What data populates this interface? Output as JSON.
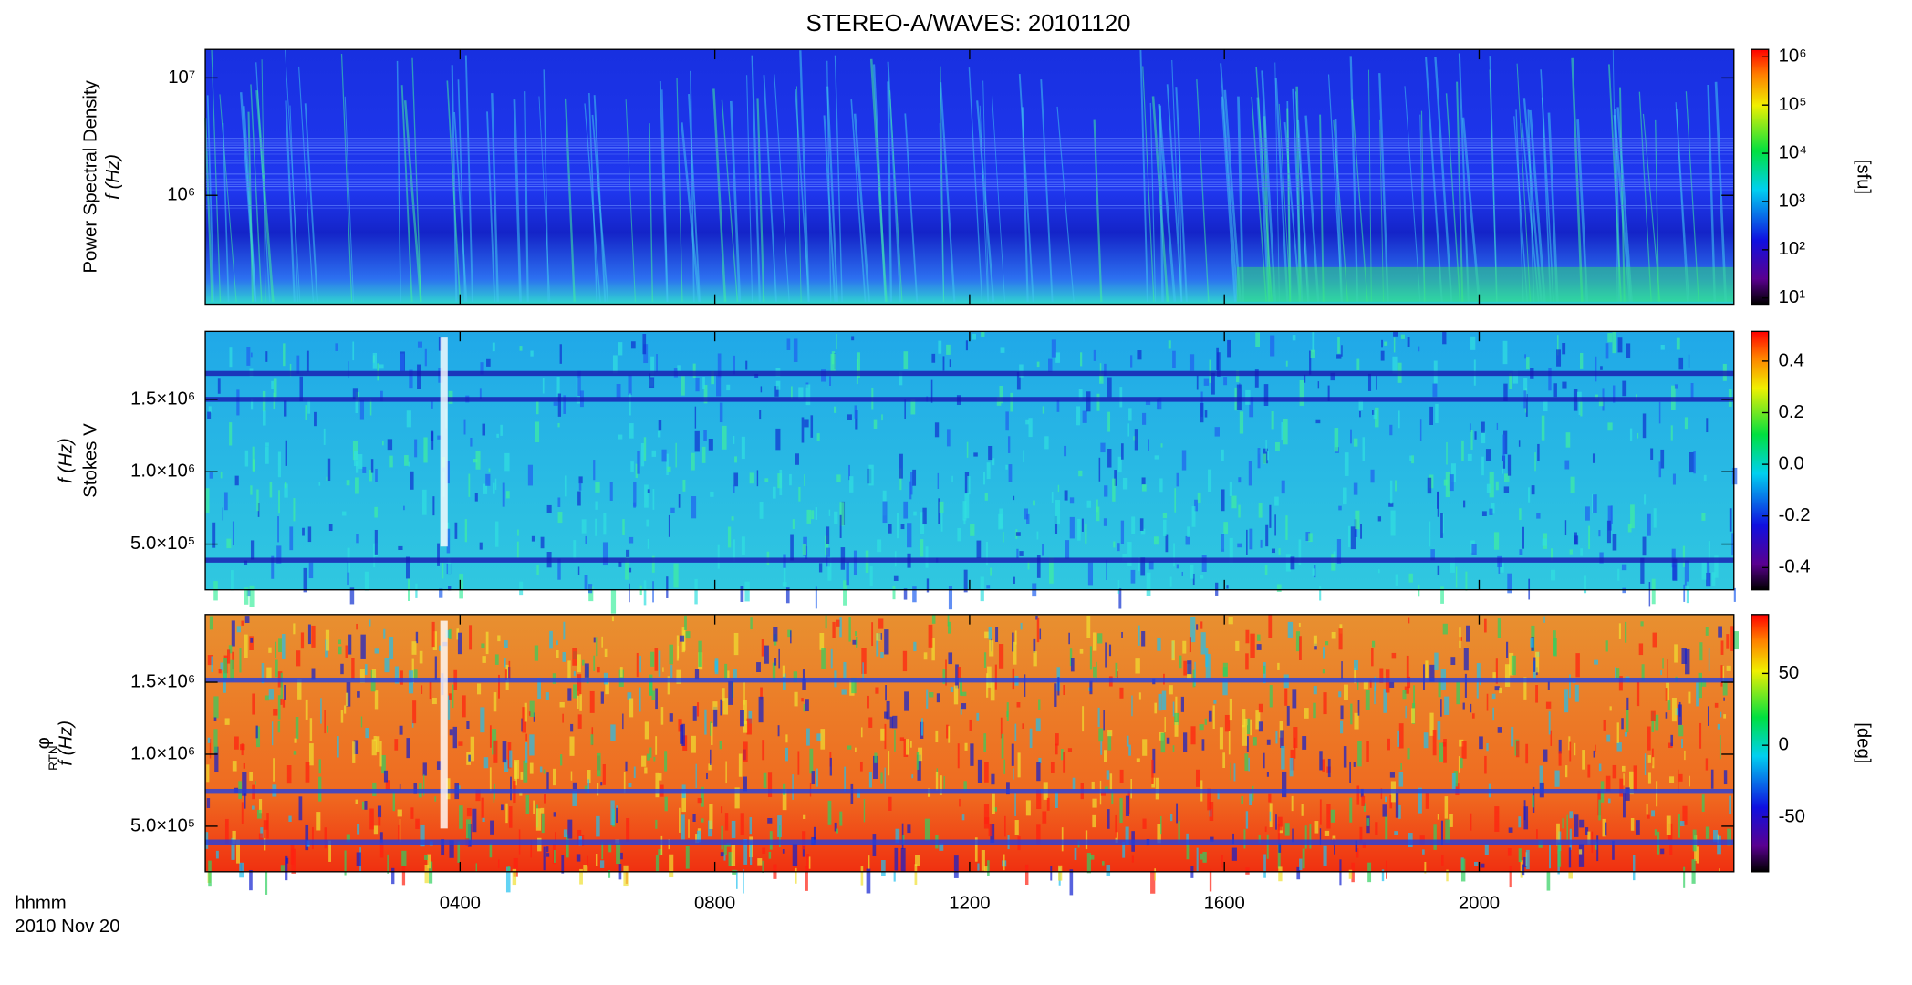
{
  "title": "STEREO-A/WAVES: 20101120",
  "x_axis": {
    "label": "hhmm",
    "date": "2010 Nov 20",
    "xlim": [
      0,
      2400
    ],
    "xticks": [
      {
        "value": 400,
        "label": "0400"
      },
      {
        "value": 800,
        "label": "0800"
      },
      {
        "value": 1200,
        "label": "1200"
      },
      {
        "value": 1600,
        "label": "1600"
      },
      {
        "value": 2000,
        "label": "2000"
      }
    ]
  },
  "chart_data": [
    {
      "type": "heatmap",
      "ylabel": [
        "Power Spectral Density",
        "f (Hz)"
      ],
      "yscale": "log",
      "ylim": [
        118600,
        17450000
      ],
      "yticks": [
        {
          "value": 1000000,
          "label": "10⁶"
        },
        {
          "value": 10000000,
          "label": "10⁷"
        }
      ],
      "colorbar": {
        "scale": "log",
        "lim": [
          7.45,
          1420000
        ],
        "label": "[sfu]",
        "ticks": [
          {
            "value": 10,
            "label": "10¹"
          },
          {
            "value": 100,
            "label": "10²"
          },
          {
            "value": 1000,
            "label": "10³"
          },
          {
            "value": 10000,
            "label": "10⁴"
          },
          {
            "value": 100000,
            "label": "10⁵"
          },
          {
            "value": 1000000,
            "label": "10⁶"
          }
        ]
      }
    },
    {
      "type": "heatmap",
      "ylabel": [
        "Stokes V",
        "f (Hz)"
      ],
      "yscale": "linear",
      "ylim": [
        184000,
        1970000
      ],
      "yticks": [
        {
          "value": 500000,
          "label": "5.0×10⁵"
        },
        {
          "value": 1000000,
          "label": "1.0×10⁶"
        },
        {
          "value": 1500000,
          "label": "1.5×10⁶"
        }
      ],
      "colorbar": {
        "scale": "linear",
        "lim": [
          -0.486,
          0.515
        ],
        "ticks": [
          -0.4,
          -0.2,
          {
            "value": 0,
            "label": "0.0"
          },
          0.2,
          0.4
        ]
      }
    },
    {
      "type": "heatmap",
      "ylabel": [
        "φ",
        "f (Hz)"
      ],
      "ylabel_sub": "RTN",
      "yscale": "linear",
      "ylim": [
        184000,
        1970000
      ],
      "yticks": [
        {
          "value": 500000,
          "label": "5.0×10⁵"
        },
        {
          "value": 1000000,
          "label": "1.0×10⁶"
        },
        {
          "value": 1500000,
          "label": "1.5×10⁶"
        }
      ],
      "colorbar": {
        "scale": "linear",
        "lim": [
          -88,
          91
        ],
        "label": "[deg]",
        "ticks": [
          -50,
          0,
          50
        ]
      }
    }
  ]
}
